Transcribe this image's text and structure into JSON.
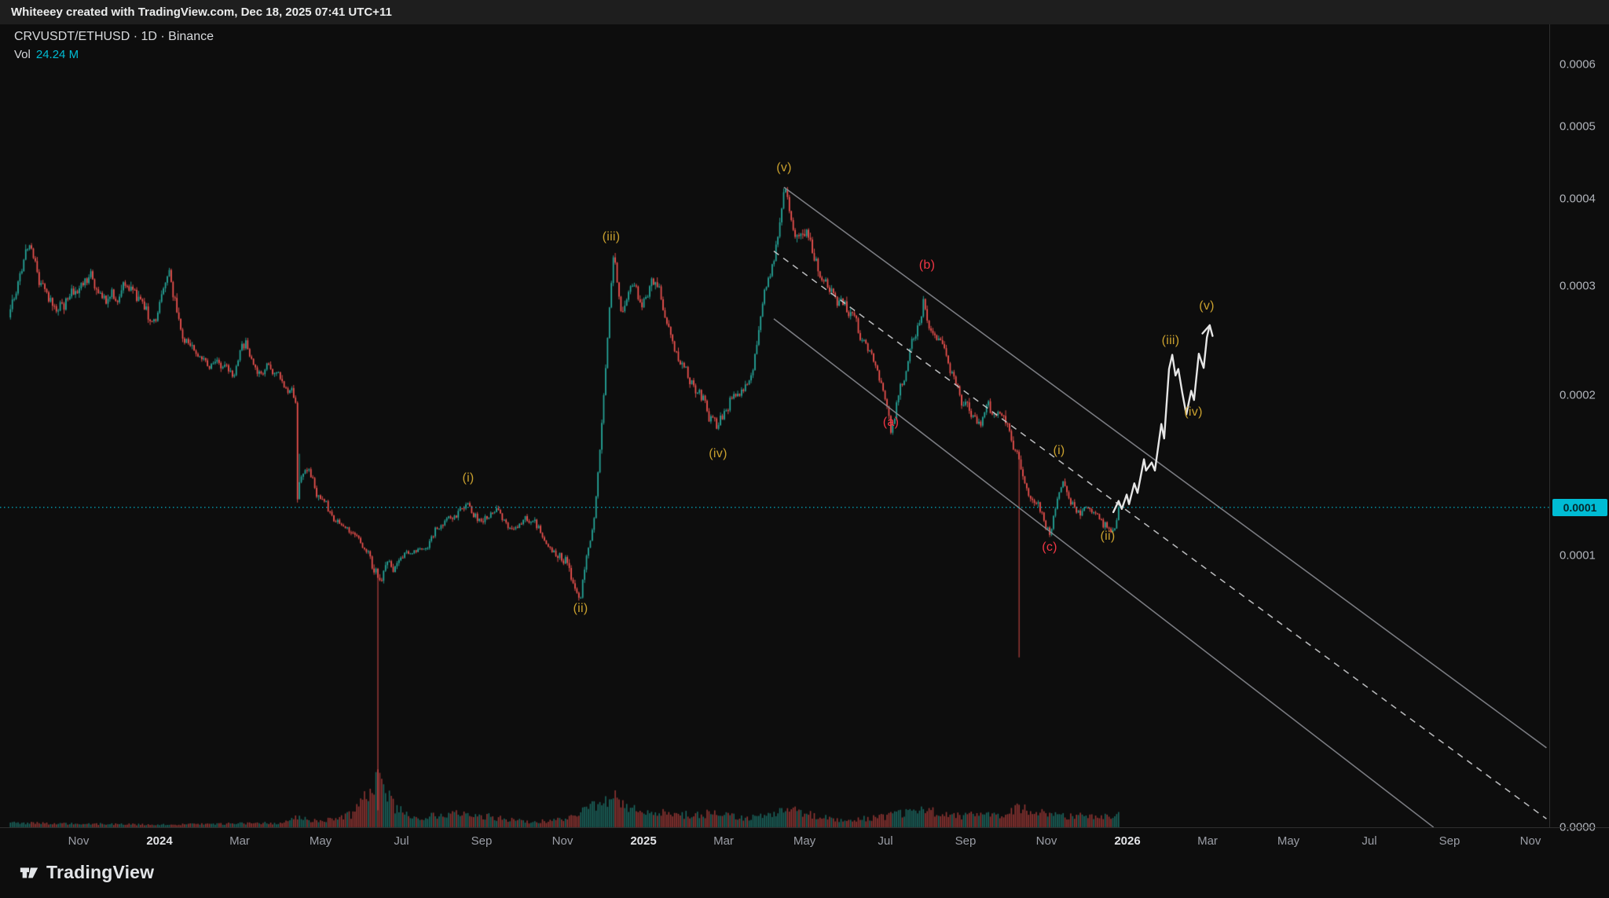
{
  "topbar": {
    "attribution": "Whiteeey created with TradingView.com, Dec 18, 2025 07:41 UTC+11"
  },
  "legend": {
    "symbol_line": "CRVUSDT/ETHUSD · 1D · Binance",
    "vol_label": "Vol",
    "vol_value": "24.24 M"
  },
  "footer": {
    "brand": "TradingView"
  },
  "colors": {
    "up": "#26a69a",
    "down": "#ef5350",
    "accent": "#00bcd4",
    "wave_impulse": "#c9a02e",
    "wave_corrective": "#f23645",
    "channel_solid": "#85878d",
    "channel_dashed": "#c9cacc",
    "projection": "#e6e6e6"
  },
  "chart_data": {
    "type": "candlestick",
    "title": "CRVUSDT/ETHUSD · 1D · Binance",
    "symbol": "CRVUSDT/ETHUSD",
    "interval": "1D",
    "exchange": "Binance",
    "volume_display": "24.24 M",
    "scale": "logarithmic",
    "y_axis_ticks": [
      {
        "label": "0.0006",
        "value": 0.0006
      },
      {
        "label": "0.0005",
        "value": 0.0005
      },
      {
        "label": "0.0004",
        "value": 0.0004
      },
      {
        "label": "0.0003",
        "value": 0.0003
      },
      {
        "label": "0.0002",
        "value": 0.0002
      },
      {
        "label": "0.0001",
        "value": 0.0001
      },
      {
        "label": "0.0000",
        "value": 2e-05
      }
    ],
    "x_axis_ticks": [
      {
        "label": "Nov",
        "m": 0
      },
      {
        "label": "2024",
        "m": 2,
        "year": true
      },
      {
        "label": "Mar",
        "m": 4
      },
      {
        "label": "May",
        "m": 6
      },
      {
        "label": "Jul",
        "m": 8
      },
      {
        "label": "Sep",
        "m": 10
      },
      {
        "label": "Nov",
        "m": 12
      },
      {
        "label": "2025",
        "m": 14,
        "year": true
      },
      {
        "label": "Mar",
        "m": 16
      },
      {
        "label": "May",
        "m": 18
      },
      {
        "label": "Jul",
        "m": 20
      },
      {
        "label": "Sep",
        "m": 22
      },
      {
        "label": "Nov",
        "m": 24
      },
      {
        "label": "2026",
        "m": 26,
        "year": true
      },
      {
        "label": "Mar",
        "m": 28
      },
      {
        "label": "May",
        "m": 30
      },
      {
        "label": "Jul",
        "m": 32
      },
      {
        "label": "Sep",
        "m": 34
      },
      {
        "label": "Nov",
        "m": 36
      }
    ],
    "last_price": {
      "display": "0.0001",
      "value": 0.00013
    },
    "price_path_m_p": [
      [
        -1.7,
        0.00027
      ],
      [
        -1.25,
        0.00033
      ],
      [
        -0.8,
        0.000285
      ],
      [
        -0.45,
        0.00028
      ],
      [
        0.3,
        0.00031
      ],
      [
        0.7,
        0.000285
      ],
      [
        1.35,
        0.0003
      ],
      [
        1.85,
        0.00026
      ],
      [
        2.25,
        0.000295
      ],
      [
        2.75,
        0.00025
      ],
      [
        3.25,
        0.000235
      ],
      [
        3.85,
        0.000225
      ],
      [
        4.15,
        0.000245
      ],
      [
        4.45,
        0.000215
      ],
      [
        4.8,
        0.00022
      ],
      [
        5.38,
        0.000198
      ],
      [
        5.46,
        0.00014
      ],
      [
        5.8,
        0.000145
      ],
      [
        6.2,
        0.000125
      ],
      [
        6.55,
        0.000115
      ],
      [
        7.0,
        0.000105
      ],
      [
        7.4,
        9.5e-05
      ],
      [
        7.85,
        0.0001
      ],
      [
        8.25,
        0.000105
      ],
      [
        8.6,
        0.00011
      ],
      [
        9.05,
        0.000125
      ],
      [
        9.65,
        0.000133
      ],
      [
        10.0,
        0.000122
      ],
      [
        10.45,
        0.000128
      ],
      [
        10.9,
        0.000115
      ],
      [
        11.3,
        0.000118
      ],
      [
        11.8,
        0.000105
      ],
      [
        12.15,
        9.8e-05
      ],
      [
        12.45,
        9e-05
      ],
      [
        12.75,
        0.00012
      ],
      [
        13.0,
        0.00019
      ],
      [
        13.25,
        0.000335
      ],
      [
        13.45,
        0.00028
      ],
      [
        13.7,
        0.0003
      ],
      [
        13.95,
        0.00027
      ],
      [
        14.3,
        0.000295
      ],
      [
        14.6,
        0.00027
      ],
      [
        14.9,
        0.000225
      ],
      [
        15.2,
        0.00021
      ],
      [
        15.5,
        0.000195
      ],
      [
        15.85,
        0.00018
      ],
      [
        16.15,
        0.000195
      ],
      [
        16.5,
        0.0002
      ],
      [
        16.9,
        0.00026
      ],
      [
        17.2,
        0.00032
      ],
      [
        17.5,
        0.000405
      ],
      [
        17.75,
        0.00036
      ],
      [
        18.05,
        0.000385
      ],
      [
        18.4,
        0.00032
      ],
      [
        18.8,
        0.0003
      ],
      [
        19.15,
        0.00027
      ],
      [
        19.55,
        0.000235
      ],
      [
        19.9,
        0.00021
      ],
      [
        20.15,
        0.000175
      ],
      [
        20.45,
        0.00021
      ],
      [
        20.75,
        0.00026
      ],
      [
        20.95,
        0.000295
      ],
      [
        21.25,
        0.00025
      ],
      [
        21.6,
        0.000225
      ],
      [
        21.95,
        0.0002
      ],
      [
        22.35,
        0.00019
      ],
      [
        22.75,
        0.000185
      ],
      [
        23.1,
        0.00017
      ],
      [
        23.3,
        0.000165
      ],
      [
        23.55,
        0.00014
      ],
      [
        23.8,
        0.00013
      ],
      [
        24.1,
        0.000113
      ],
      [
        24.4,
        0.00015
      ],
      [
        24.7,
        0.000135
      ],
      [
        25.05,
        0.000125
      ],
      [
        25.4,
        0.000115
      ],
      [
        25.6,
        0.000118
      ],
      [
        25.79,
        0.00013
      ]
    ],
    "events": [
      {
        "m": 5.42,
        "type": "crash",
        "to": 0.000135
      },
      {
        "m": 7.42,
        "type": "wick_down",
        "low": 2.5e-05
      },
      {
        "m": 23.32,
        "type": "wick_down",
        "low": 7e-05
      }
    ],
    "volume_profile_m_h": [
      [
        -1.7,
        0.1
      ],
      [
        0,
        0.08
      ],
      [
        2,
        0.06
      ],
      [
        3.5,
        0.08
      ],
      [
        5.0,
        0.1
      ],
      [
        5.42,
        0.22
      ],
      [
        6,
        0.14
      ],
      [
        6.8,
        0.3
      ],
      [
        7.42,
        1.0
      ],
      [
        7.9,
        0.4
      ],
      [
        8.5,
        0.22
      ],
      [
        9.1,
        0.3
      ],
      [
        9.7,
        0.32
      ],
      [
        10.5,
        0.2
      ],
      [
        11.2,
        0.12
      ],
      [
        12,
        0.18
      ],
      [
        12.6,
        0.42
      ],
      [
        13.0,
        0.55
      ],
      [
        13.3,
        0.72
      ],
      [
        13.9,
        0.38
      ],
      [
        14.5,
        0.33
      ],
      [
        15.1,
        0.28
      ],
      [
        15.9,
        0.33
      ],
      [
        16.5,
        0.2
      ],
      [
        17.1,
        0.26
      ],
      [
        17.6,
        0.42
      ],
      [
        18.2,
        0.28
      ],
      [
        19,
        0.16
      ],
      [
        20,
        0.24
      ],
      [
        20.95,
        0.4
      ],
      [
        21.6,
        0.26
      ],
      [
        22.2,
        0.28
      ],
      [
        23.0,
        0.24
      ],
      [
        23.32,
        0.48
      ],
      [
        23.9,
        0.33
      ],
      [
        24.5,
        0.24
      ],
      [
        25.1,
        0.26
      ],
      [
        25.79,
        0.28
      ]
    ],
    "wave_annotations": [
      {
        "label": "(i)",
        "m": 9.66,
        "p": 0.000148,
        "set": "impulse"
      },
      {
        "label": "(ii)",
        "m": 12.45,
        "p": 8.43e-05,
        "set": "impulse"
      },
      {
        "label": "(iii)",
        "m": 13.21,
        "p": 0.000356,
        "set": "impulse"
      },
      {
        "label": "(iv)",
        "m": 15.86,
        "p": 0.000163,
        "set": "impulse"
      },
      {
        "label": "(v)",
        "m": 17.49,
        "p": 0.000442,
        "set": "impulse"
      },
      {
        "label": "(a)",
        "m": 20.14,
        "p": 0.000183,
        "set": "corrective"
      },
      {
        "label": "(b)",
        "m": 21.04,
        "p": 0.000323,
        "set": "corrective"
      },
      {
        "label": "(c)",
        "m": 24.08,
        "p": 0.000105,
        "set": "corrective"
      },
      {
        "label": "(i)",
        "m": 24.31,
        "p": 0.000165,
        "set": "projection"
      },
      {
        "label": "(ii)",
        "m": 25.52,
        "p": 0.000112,
        "set": "projection"
      },
      {
        "label": "(iii)",
        "m": 27.08,
        "p": 0.00025,
        "set": "projection"
      },
      {
        "label": "(iv)",
        "m": 27.64,
        "p": 0.000189,
        "set": "projection"
      },
      {
        "label": "(v)",
        "m": 27.97,
        "p": 0.000281,
        "set": "projection"
      }
    ],
    "projection_path_m_p": [
      [
        25.66,
        0.000127
      ],
      [
        25.79,
        0.000134
      ],
      [
        25.87,
        0.000129
      ],
      [
        25.99,
        0.000138
      ],
      [
        26.05,
        0.000132
      ],
      [
        26.18,
        0.000145
      ],
      [
        26.26,
        0.000139
      ],
      [
        26.42,
        0.00016
      ],
      [
        26.47,
        0.000153
      ],
      [
        26.61,
        0.000158
      ],
      [
        26.69,
        0.000153
      ],
      [
        26.85,
        0.000182
      ],
      [
        26.92,
        0.000173
      ],
      [
        27.04,
        0.000224
      ],
      [
        27.12,
        0.000237
      ],
      [
        27.2,
        0.000218
      ],
      [
        27.27,
        0.000224
      ],
      [
        27.37,
        0.000202
      ],
      [
        27.47,
        0.000188
      ],
      [
        27.59,
        0.000204
      ],
      [
        27.66,
        0.000197
      ],
      [
        27.78,
        0.000238
      ],
      [
        27.9,
        0.000225
      ],
      [
        27.98,
        0.000253
      ],
      [
        28.05,
        0.000264
      ]
    ],
    "channel_lines": [
      {
        "name": "trend-channel-upper-line",
        "style": "solid",
        "from": [
          17.49,
          0.000416
        ],
        "to": [
          36.4,
          4.34e-05
        ]
      },
      {
        "name": "trend-channel-median-line",
        "style": "dashed",
        "from": [
          17.24,
          0.00034
        ],
        "to": [
          36.4,
          2.25e-05
        ]
      },
      {
        "name": "trend-channel-lower-line",
        "style": "solid",
        "from": [
          17.24,
          0.00027
        ],
        "to": [
          33.6,
          2e-05
        ]
      }
    ]
  }
}
